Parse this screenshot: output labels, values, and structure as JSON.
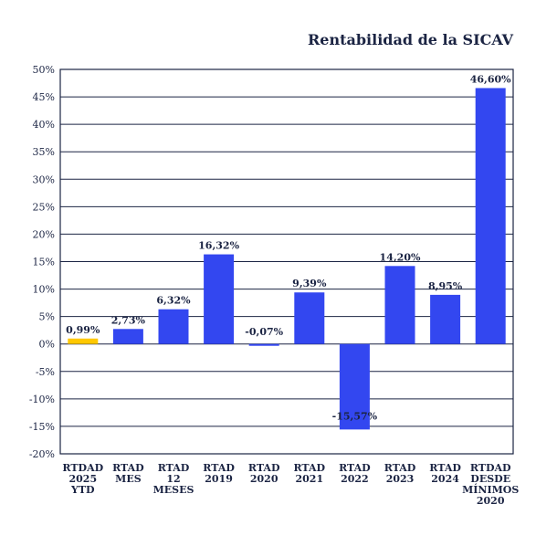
{
  "chart_data": {
    "type": "bar",
    "title": "Rentabilidad de la SICAV",
    "categories": [
      [
        "RTDAD",
        "2025",
        "YTD"
      ],
      [
        "RTAD",
        "MES"
      ],
      [
        "RTAD",
        "12",
        "MESES"
      ],
      [
        "RTAD",
        "2019"
      ],
      [
        "RTAD",
        "2020"
      ],
      [
        "RTAD",
        "2021"
      ],
      [
        "RTAD",
        "2022"
      ],
      [
        "RTAD",
        "2023"
      ],
      [
        "RTAD",
        "2024"
      ],
      [
        "RTDAD",
        "DESDE",
        "MÍNIMOS",
        "2020"
      ]
    ],
    "values": [
      0.99,
      2.73,
      6.32,
      16.32,
      -0.07,
      9.39,
      -15.57,
      14.2,
      8.95,
      46.6
    ],
    "data_labels": [
      "0,99%",
      "2,73%",
      "6,32%",
      "16,32%",
      "-0,07%",
      "9,39%",
      "-15,57%",
      "14,20%",
      "8,95%",
      "46,60%"
    ],
    "ylim": [
      -20,
      50
    ],
    "yticks": [
      50,
      45,
      40,
      35,
      30,
      25,
      20,
      15,
      10,
      5,
      0,
      -5,
      -10,
      -15,
      -20
    ],
    "ytick_labels": [
      "50%",
      "45%",
      "40%",
      "35%",
      "30%",
      "25%",
      "20%",
      "15%",
      "10%",
      "5%",
      "0%",
      "-5%",
      "-10%",
      "-15%",
      "-20%"
    ],
    "grid": true,
    "colors": {
      "highlight": "#ffc800",
      "bar": "#3347f0",
      "text": "#1b2443",
      "grid": "#1b2443"
    },
    "highlight_index": 0
  }
}
